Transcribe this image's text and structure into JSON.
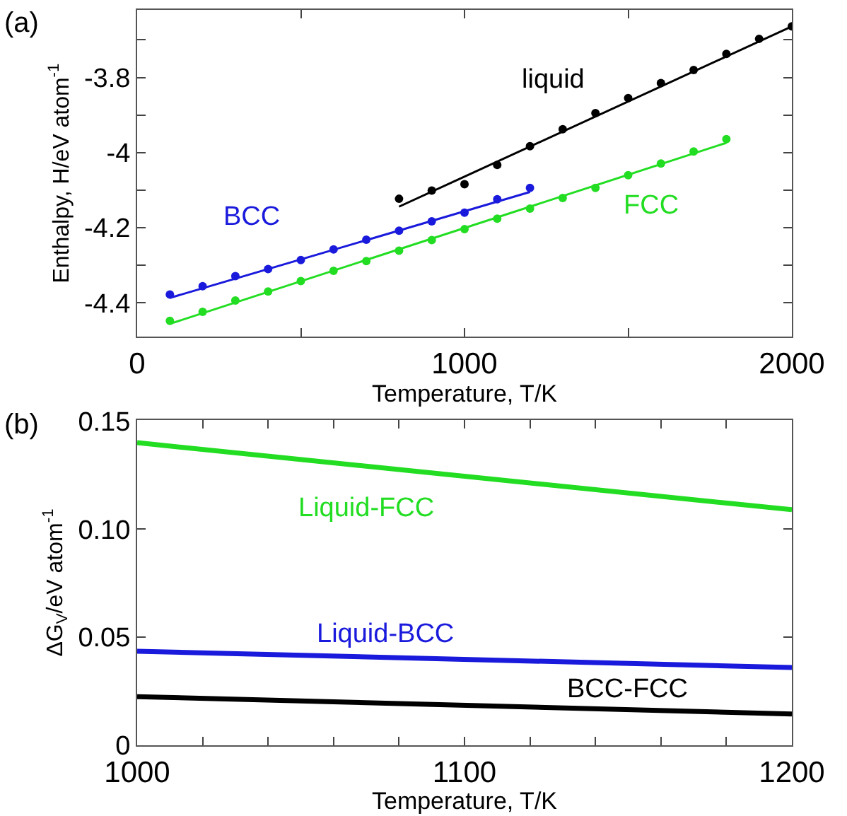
{
  "chart_data": [
    {
      "type": "scatter",
      "title": "(a)",
      "xlabel": "Temperature, T/K",
      "ylabel": "Enthalpy, H/eV atom$^{-1}$",
      "grid": false,
      "legend": false,
      "xlim": [
        0,
        2000
      ],
      "xticks": [
        0,
        {
          "value": 500,
          "label": null
        },
        1000,
        {
          "value": 1500,
          "label": null
        },
        2000
      ],
      "ylim": [
        -4.49,
        -3.62
      ],
      "yticks": [
        -4.4,
        {
          "value": -4.3,
          "label": null
        },
        -4.2,
        {
          "value": -4.1,
          "label": null
        },
        {
          "value": -4,
          "label": "-4"
        },
        {
          "value": -3.9,
          "label": null
        },
        -3.8,
        {
          "value": -3.7,
          "label": null
        }
      ],
      "series": [
        {
          "name": "liquid",
          "marker": "circle",
          "color": "#000000",
          "x": [
            800,
            900,
            1000,
            1100,
            1200,
            1300,
            1400,
            1500,
            1600,
            1700,
            1800,
            1900,
            2000
          ],
          "values": [
            -4.123,
            -4.101,
            -4.084,
            -4.033,
            -3.983,
            -3.938,
            -3.895,
            -3.855,
            -3.815,
            -3.78,
            -3.737,
            -3.697,
            -3.664
          ]
        },
        {
          "type": "line",
          "marker": "none",
          "color": "#000000",
          "x": [
            800,
            2000
          ],
          "values": [
            -4.144,
            -3.664
          ]
        },
        {
          "name": "BCC",
          "marker": "circle",
          "color": "#1a1adc",
          "x": [
            100,
            200,
            300,
            400,
            500,
            600,
            700,
            800,
            900,
            1000,
            1100,
            1200
          ],
          "values": [
            -4.378,
            -4.356,
            -4.329,
            -4.31,
            -4.286,
            -4.258,
            -4.232,
            -4.208,
            -4.183,
            -4.16,
            -4.124,
            -4.094
          ]
        },
        {
          "type": "line",
          "marker": "none",
          "color": "#1a1adc",
          "x": [
            100,
            1200
          ],
          "values": [
            -4.387,
            -4.105
          ]
        },
        {
          "name": "FCC",
          "marker": "circle",
          "color": "#22dd22",
          "x": [
            100,
            200,
            300,
            400,
            500,
            600,
            700,
            800,
            900,
            1000,
            1100,
            1200,
            1300,
            1400,
            1500,
            1600,
            1700,
            1800
          ],
          "values": [
            -4.448,
            -4.424,
            -4.394,
            -4.37,
            -4.342,
            -4.315,
            -4.289,
            -4.261,
            -4.233,
            -4.204,
            -4.176,
            -4.149,
            -4.121,
            -4.094,
            -4.06,
            -4.029,
            -3.997,
            -3.964
          ]
        },
        {
          "type": "line",
          "marker": "none",
          "color": "#22dd22",
          "x": [
            100,
            1800
          ],
          "values": [
            -4.456,
            -3.974
          ]
        }
      ]
    },
    {
      "type": "line",
      "title": "(b)",
      "xlabel": "Temperature, T/K",
      "ylabel": "ΔG$_{V}$/eV atom$^{-1}$",
      "line_style": "solid",
      "grid": false,
      "legend": false,
      "xlim": [
        1000,
        1200
      ],
      "xticks": [
        1000,
        {
          "value": 1020,
          "label": null
        },
        {
          "value": 1040,
          "label": null
        },
        {
          "value": 1060,
          "label": null
        },
        {
          "value": 1080,
          "label": null
        },
        1100,
        {
          "value": 1120,
          "label": null
        },
        {
          "value": 1140,
          "label": null
        },
        {
          "value": 1160,
          "label": null
        },
        {
          "value": 1180,
          "label": null
        },
        1200
      ],
      "ylim": [
        0,
        0.1505
      ],
      "yticks": [
        0,
        {
          "value": 0.05,
          "label": "0.05"
        },
        {
          "value": 0.1,
          "label": "0.10"
        },
        0.15
      ],
      "series": [
        {
          "name": "Liquid-FCC",
          "color": "#22dd22",
          "x": [
            1000,
            1200
          ],
          "values": [
            0.14,
            0.109
          ]
        },
        {
          "name": "Liquid-BCC",
          "color": "#1a1adc",
          "x": [
            1000,
            1200
          ],
          "values": [
            0.0435,
            0.036
          ]
        },
        {
          "name": "BCC-FCC",
          "color": "#000000",
          "x": [
            1000,
            1200
          ],
          "values": [
            0.0225,
            0.0145
          ]
        }
      ]
    }
  ]
}
